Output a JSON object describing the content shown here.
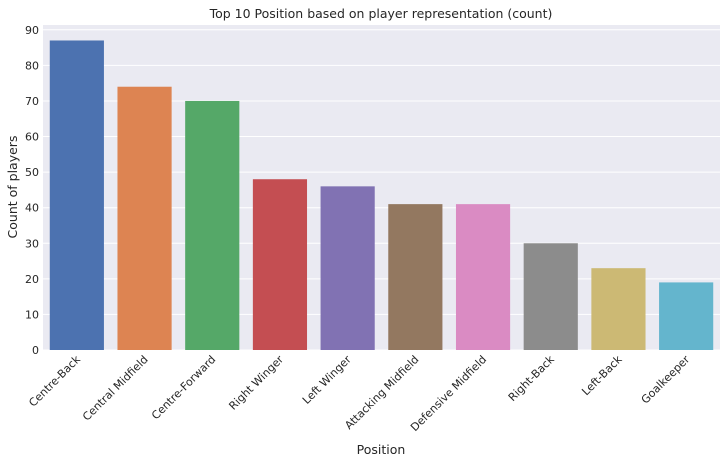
{
  "chart_data": {
    "type": "bar",
    "title": "Top 10 Position based on player representation (count)",
    "xlabel": "Position",
    "ylabel": "Count of players",
    "categories": [
      "Centre-Back",
      "Central Midfield",
      "Centre-Forward",
      "Right Winger",
      "Left Winger",
      "Attacking Midfield",
      "Defensive Midfield",
      "Right-Back",
      "Left-Back",
      "Goalkeeper"
    ],
    "values": [
      87,
      74,
      70,
      48,
      46,
      41,
      41,
      30,
      23,
      19
    ],
    "colors": [
      "#4c72b0",
      "#dd8452",
      "#55a868",
      "#c44e52",
      "#8172b3",
      "#937860",
      "#da8bc3",
      "#8c8c8c",
      "#ccb974",
      "#64b5cd"
    ],
    "ylim": [
      0,
      91.35
    ],
    "yticks": [
      0,
      10,
      20,
      30,
      40,
      50,
      60,
      70,
      80,
      90
    ],
    "grid": true,
    "background": "#eaeaf2"
  }
}
